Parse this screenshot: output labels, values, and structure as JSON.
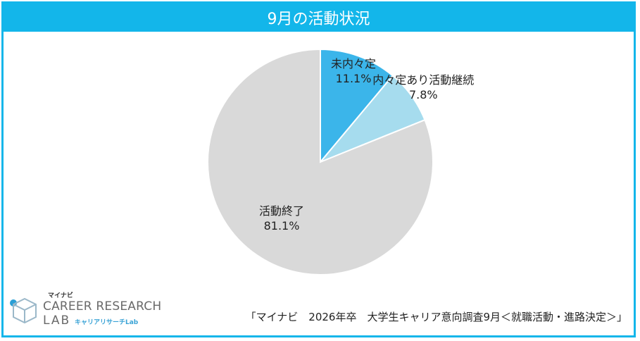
{
  "title": "9月の活動状況",
  "chart_data": {
    "type": "pie",
    "title": "9月の活動状況",
    "slices": [
      {
        "label": "未内々定",
        "value": 11.1,
        "display": "11.1%",
        "color": "#3bb5ea"
      },
      {
        "label": "内々定あり活動継続",
        "value": 7.8,
        "display": "7.8%",
        "color": "#a6dcee"
      },
      {
        "label": "活動終了",
        "value": 81.1,
        "display": "81.1%",
        "color": "#d9d9d9"
      }
    ]
  },
  "logo": {
    "brand": "マイナビ",
    "line1": "CAREER RESEARCH",
    "line2": "LAB",
    "line2_sub": "キャリアリサーチLab"
  },
  "source": "「マイナビ　2026年卒　大学生キャリア意向調査9月＜就職活動・進路決定＞」"
}
